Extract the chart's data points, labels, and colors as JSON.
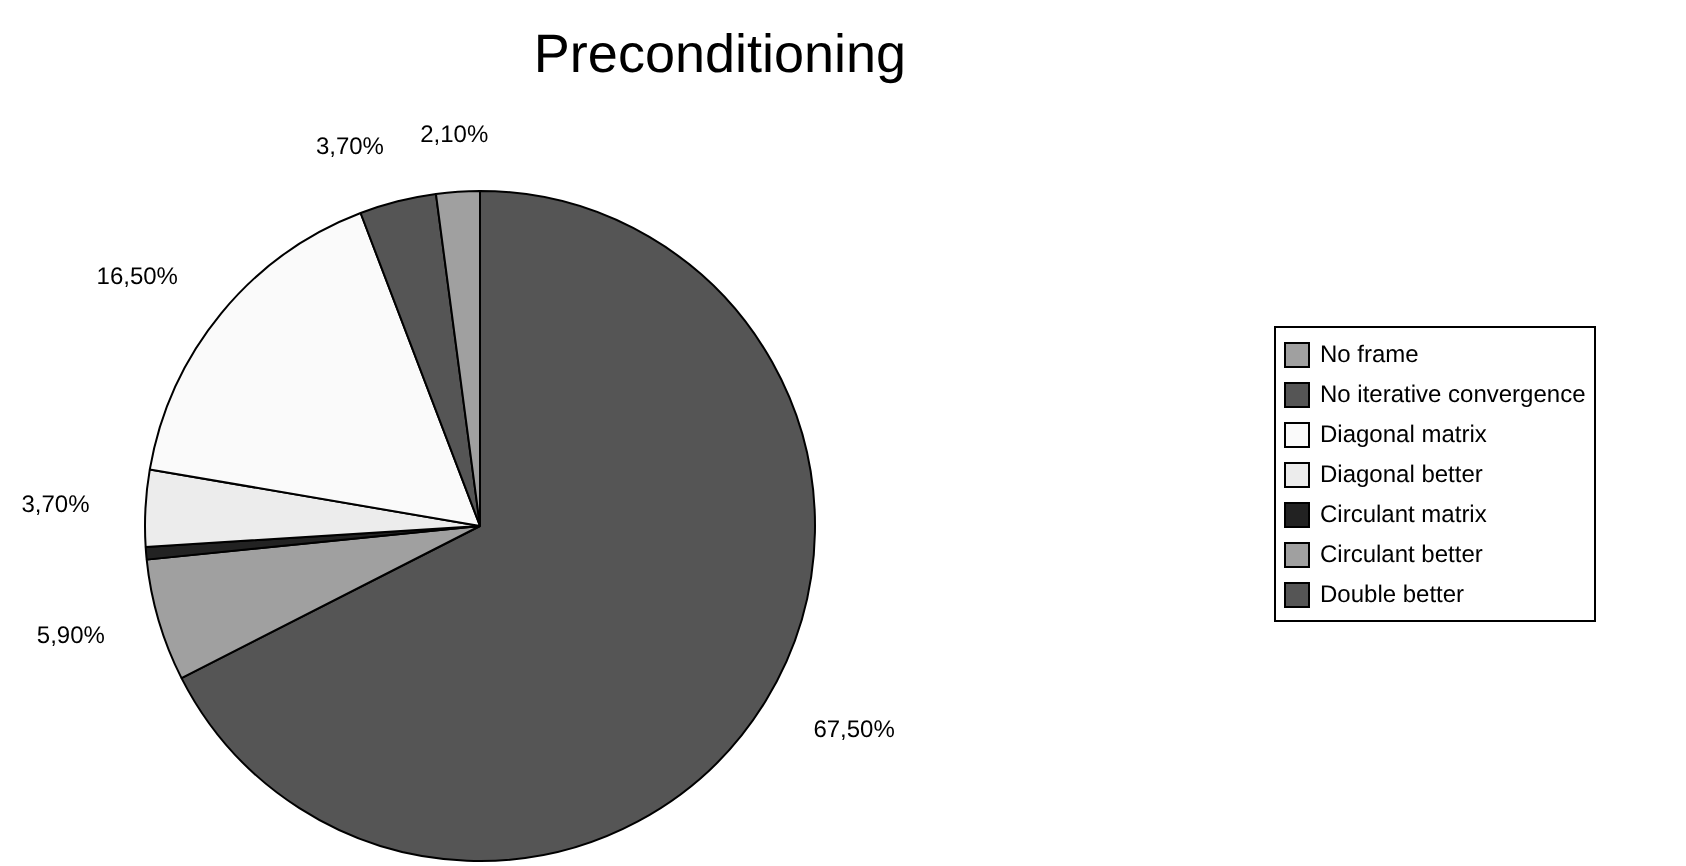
{
  "chart_data": {
    "type": "pie",
    "title": "Preconditioning",
    "categories": [
      "No frame",
      "No iterative convergence",
      "Diagonal matrix",
      "Diagonal better",
      "Circulant matrix",
      "Circulant better",
      "Double better"
    ],
    "values": [
      2.1,
      3.7,
      16.5,
      3.7,
      0.6,
      5.9,
      67.5
    ],
    "value_labels": [
      "2,10%",
      "3,70%",
      "16,50%",
      "3,70%",
      null,
      "5,90%",
      "67,50%"
    ],
    "colors": [
      "#a0a0a0",
      "#555555",
      "#fafafa",
      "#ececec",
      "#222222",
      "#a0a0a0",
      "#555555"
    ],
    "legend": "right"
  }
}
